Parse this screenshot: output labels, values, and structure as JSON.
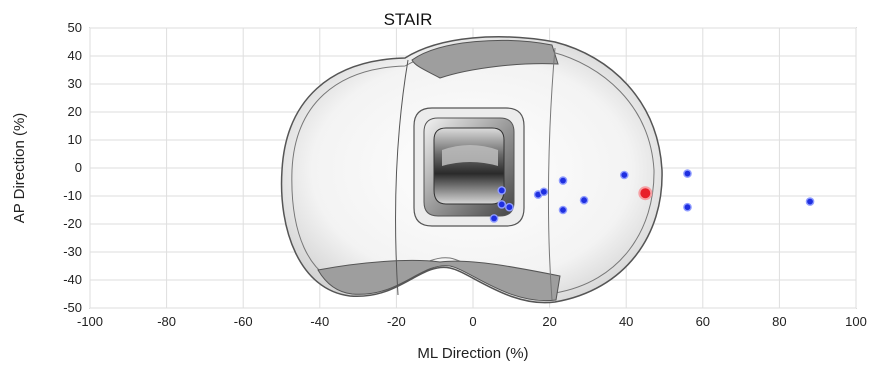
{
  "chart_data": {
    "type": "scatter",
    "title": "STAIR",
    "xlabel": "ML Direction (%)",
    "ylabel": "AP Direction (%)",
    "xlim": [
      -100,
      100
    ],
    "ylim": [
      -50,
      50
    ],
    "x_ticks": [
      "-100",
      "-80",
      "-60",
      "-40",
      "-20",
      "0",
      "20",
      "40",
      "60",
      "80",
      "100"
    ],
    "y_ticks": [
      "50",
      "40",
      "30",
      "20",
      "10",
      "0",
      "-10",
      "-20",
      "-30",
      "-40",
      "-50"
    ],
    "grid": true,
    "background_image": "tibial-insert-outline",
    "series": [
      {
        "color": "#1f2fe0",
        "points": [
          {
            "x": 7.5,
            "y": -8
          },
          {
            "x": 7.5,
            "y": -13
          },
          {
            "x": 9.5,
            "y": -14
          },
          {
            "x": 5.5,
            "y": -18
          },
          {
            "x": 17,
            "y": -9.5
          },
          {
            "x": 18.5,
            "y": -8.5
          },
          {
            "x": 23.5,
            "y": -4.5
          },
          {
            "x": 23.5,
            "y": -15
          },
          {
            "x": 29,
            "y": -11.5
          },
          {
            "x": 39.5,
            "y": -2.5
          },
          {
            "x": 56,
            "y": -2
          },
          {
            "x": 56,
            "y": -14
          },
          {
            "x": 88,
            "y": -12
          }
        ]
      },
      {
        "color": "#e8202a",
        "points": [
          {
            "x": 45,
            "y": -9
          }
        ]
      }
    ]
  }
}
